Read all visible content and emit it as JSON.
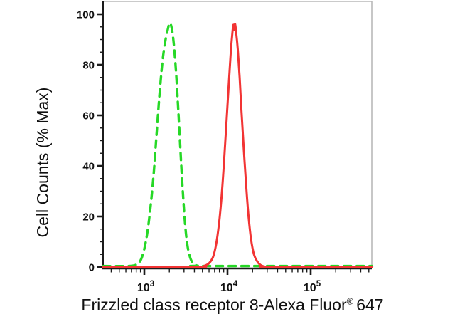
{
  "figure": {
    "ylabel": "Cell Counts (% Max)",
    "xlabel_prefix": "Frizzled class receptor 8-Alexa Fluor",
    "xlabel_sup": "®",
    "xlabel_suffix": "647"
  },
  "chart_data": {
    "type": "line",
    "title": "",
    "xlabel": "Frizzled class receptor 8-Alexa Fluor® 647",
    "ylabel": "Cell Counts (% Max)",
    "x_scale": "log",
    "x_range": [
      320,
      549000
    ],
    "ylim": [
      0,
      100
    ],
    "y_major_ticks": [
      0,
      20,
      40,
      60,
      80,
      100
    ],
    "y_minor_step": 5,
    "x_major_tick_base": "10",
    "x_major_tick_exponents": [
      3,
      4,
      5
    ],
    "grid": false,
    "legend_position": "none",
    "axis_color": "#1b1b1b",
    "frame_color": "#b9b9b9",
    "series": [
      {
        "id": "green-dashed",
        "color": "#26d826",
        "line_style": "dashed",
        "line_width": 3.4,
        "peak": {
          "x": 2020,
          "y_pct": 96.5
        },
        "points": [
          [
            320,
            0.4
          ],
          [
            650,
            0.4
          ],
          [
            780,
            0.8
          ],
          [
            880,
            2
          ],
          [
            980,
            6
          ],
          [
            1080,
            13
          ],
          [
            1180,
            23
          ],
          [
            1290,
            36
          ],
          [
            1400,
            52
          ],
          [
            1520,
            68
          ],
          [
            1650,
            81
          ],
          [
            1780,
            89
          ],
          [
            1900,
            93.5
          ],
          [
            2020,
            96.5
          ],
          [
            2150,
            94
          ],
          [
            2280,
            87
          ],
          [
            2420,
            76
          ],
          [
            2560,
            62
          ],
          [
            2700,
            48
          ],
          [
            2840,
            35
          ],
          [
            2980,
            24
          ],
          [
            3130,
            15
          ],
          [
            3300,
            8.5
          ],
          [
            3500,
            4.5
          ],
          [
            3750,
            2
          ],
          [
            4050,
            1
          ],
          [
            4400,
            0.5
          ],
          [
            5000,
            0.4
          ],
          [
            549000,
            0.4
          ]
        ]
      },
      {
        "id": "red-solid",
        "color": "#f23434",
        "line_style": "solid",
        "line_width": 3,
        "peak": {
          "x": 12350,
          "y_pct": 96.2
        },
        "points": [
          [
            320,
            0
          ],
          [
            4300,
            0
          ],
          [
            5200,
            0.4
          ],
          [
            6000,
            1.5
          ],
          [
            6700,
            4
          ],
          [
            7300,
            9
          ],
          [
            7900,
            17
          ],
          [
            8500,
            28
          ],
          [
            9100,
            42
          ],
          [
            9700,
            57
          ],
          [
            10300,
            71
          ],
          [
            10900,
            84
          ],
          [
            11400,
            92
          ],
          [
            11800,
            95.8
          ],
          [
            12050,
            93.8
          ],
          [
            12350,
            96.2
          ],
          [
            12700,
            93
          ],
          [
            13300,
            86
          ],
          [
            14000,
            75
          ],
          [
            14700,
            62
          ],
          [
            15600,
            48
          ],
          [
            16700,
            33
          ],
          [
            17900,
            20
          ],
          [
            19200,
            11
          ],
          [
            20800,
            5
          ],
          [
            22800,
            2.2
          ],
          [
            25000,
            0.8
          ],
          [
            28000,
            0.2
          ],
          [
            32000,
            0
          ],
          [
            549000,
            0
          ]
        ]
      }
    ]
  }
}
